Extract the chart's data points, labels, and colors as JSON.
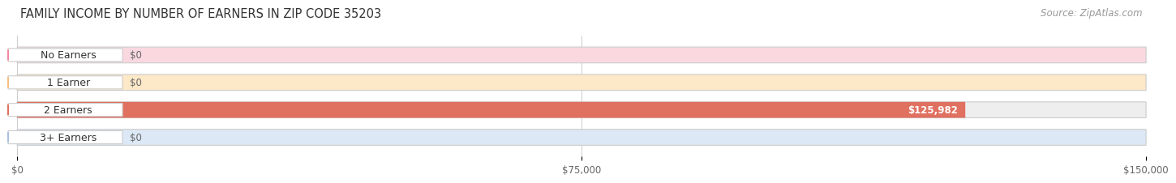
{
  "title": "FAMILY INCOME BY NUMBER OF EARNERS IN ZIP CODE 35203",
  "source": "Source: ZipAtlas.com",
  "categories": [
    "No Earners",
    "1 Earner",
    "2 Earners",
    "3+ Earners"
  ],
  "values": [
    0,
    0,
    125982,
    0
  ],
  "bar_colors": [
    "#f2879f",
    "#f5be80",
    "#e07060",
    "#a8bfe0"
  ],
  "bar_bg_colors": [
    "#fad8e0",
    "#fde8c8",
    "#eeeeee",
    "#dce8f5"
  ],
  "xlim": [
    0,
    150000
  ],
  "xticks": [
    0,
    75000,
    150000
  ],
  "xtick_labels": [
    "$0",
    "$75,000",
    "$150,000"
  ],
  "value_label_color_bar": "#ffffff",
  "value_label_color_zero": "#666666",
  "background_color": "#ffffff",
  "title_fontsize": 10.5,
  "source_fontsize": 8.5,
  "bar_height": 0.58,
  "label_fontsize": 9,
  "value_fontsize": 8.5
}
